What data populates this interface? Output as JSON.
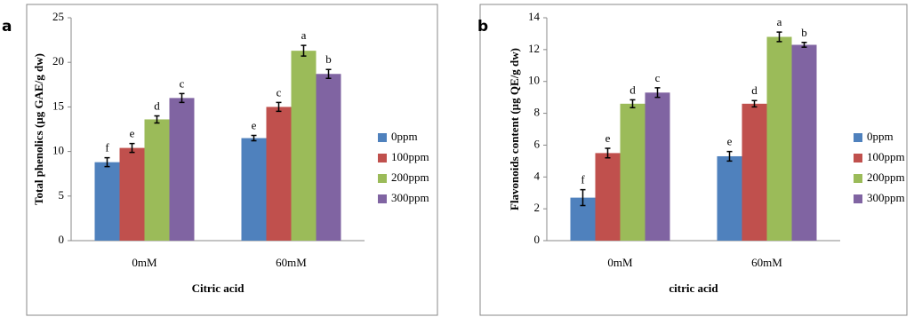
{
  "chart_data": [
    {
      "type": "bar",
      "panel_label": "a",
      "y_label": "Total phenolics (µg GAE/g dw)",
      "x_label": "Citric acid",
      "categories": [
        "0mM",
        "60mM"
      ],
      "ylim": [
        0,
        25
      ],
      "yticks": [
        0,
        5,
        10,
        15,
        20,
        25
      ],
      "series": [
        {
          "name": "0ppm",
          "color": "#4f81bd",
          "values": [
            8.8,
            11.5
          ],
          "errors": [
            0.5,
            0.3
          ],
          "annotations": [
            "f",
            "e"
          ]
        },
        {
          "name": "100ppm",
          "color": "#c0504d",
          "values": [
            10.4,
            15.0
          ],
          "errors": [
            0.5,
            0.5
          ],
          "annotations": [
            "e",
            "c"
          ]
        },
        {
          "name": "200ppm",
          "color": "#9bbb59",
          "values": [
            13.6,
            21.3
          ],
          "errors": [
            0.4,
            0.6
          ],
          "annotations": [
            "d",
            "a"
          ]
        },
        {
          "name": "300ppm",
          "color": "#8064a2",
          "values": [
            16.0,
            18.7
          ],
          "errors": [
            0.5,
            0.5
          ],
          "annotations": [
            "c",
            "b"
          ]
        }
      ]
    },
    {
      "type": "bar",
      "panel_label": "b",
      "y_label": "Flavonoids content (µg QE/g dw)",
      "x_label": "citric acid",
      "categories": [
        "0mM",
        "60mM"
      ],
      "ylim": [
        0,
        14
      ],
      "yticks": [
        0,
        2,
        4,
        6,
        8,
        10,
        12,
        14
      ],
      "series": [
        {
          "name": "0ppm",
          "color": "#4f81bd",
          "values": [
            2.7,
            5.3
          ],
          "errors": [
            0.5,
            0.3
          ],
          "annotations": [
            "f",
            "e"
          ]
        },
        {
          "name": "100ppm",
          "color": "#c0504d",
          "values": [
            5.5,
            8.6
          ],
          "errors": [
            0.3,
            0.2
          ],
          "annotations": [
            "e",
            "d"
          ]
        },
        {
          "name": "200ppm",
          "color": "#9bbb59",
          "values": [
            8.6,
            12.8
          ],
          "errors": [
            0.25,
            0.3
          ],
          "annotations": [
            "d",
            "a"
          ]
        },
        {
          "name": "300ppm",
          "color": "#8064a2",
          "values": [
            9.3,
            12.3
          ],
          "errors": [
            0.3,
            0.15
          ],
          "annotations": [
            "c",
            "b"
          ]
        }
      ]
    }
  ]
}
